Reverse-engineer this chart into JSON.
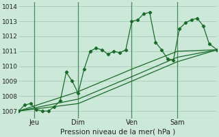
{
  "xlabel": "Pression niveau de la mer( hPa )",
  "bg_color": "#cce8d8",
  "plot_bg_color": "#cce8d8",
  "grid_color": "#aacbb8",
  "line_color": "#1a6b2a",
  "ylim": [
    1006.5,
    1014.3
  ],
  "xlim": [
    0,
    100
  ],
  "day_ticks": [
    8,
    30,
    57,
    80
  ],
  "day_labels": [
    "Jeu",
    "Dim",
    "Ven",
    "Sam"
  ],
  "vline_positions": [
    8,
    30,
    57,
    80
  ],
  "vline_color": "#4a8a5a",
  "series1_x": [
    0,
    3,
    6,
    9,
    12,
    15,
    18,
    21,
    24,
    27,
    30,
    33,
    36,
    39,
    42,
    45,
    48,
    51,
    54,
    57,
    60,
    63,
    66,
    69,
    72,
    75,
    78,
    81,
    84,
    87,
    90,
    93,
    96,
    100
  ],
  "series1_y": [
    1007.0,
    1007.4,
    1007.5,
    1007.1,
    1007.0,
    1007.0,
    1007.3,
    1007.7,
    1009.6,
    1009.0,
    1008.2,
    1009.8,
    1011.0,
    1011.2,
    1011.1,
    1010.8,
    1011.0,
    1010.9,
    1011.1,
    1013.0,
    1013.1,
    1013.5,
    1013.6,
    1011.6,
    1011.1,
    1010.5,
    1010.4,
    1012.5,
    1012.9,
    1013.1,
    1013.2,
    1012.7,
    1011.5,
    1011.1
  ],
  "series2_x": [
    0,
    30,
    57,
    80,
    100
  ],
  "series2_y": [
    1007.0,
    1007.5,
    1009.0,
    1010.3,
    1011.1
  ],
  "series3_x": [
    0,
    30,
    57,
    80,
    100
  ],
  "series3_y": [
    1007.0,
    1007.8,
    1009.3,
    1010.6,
    1011.1
  ],
  "series4_x": [
    0,
    30,
    57,
    80,
    100
  ],
  "series4_y": [
    1007.0,
    1008.3,
    1009.8,
    1011.0,
    1011.1
  ],
  "yticks": [
    1007,
    1008,
    1009,
    1010,
    1011,
    1012,
    1013,
    1014
  ]
}
